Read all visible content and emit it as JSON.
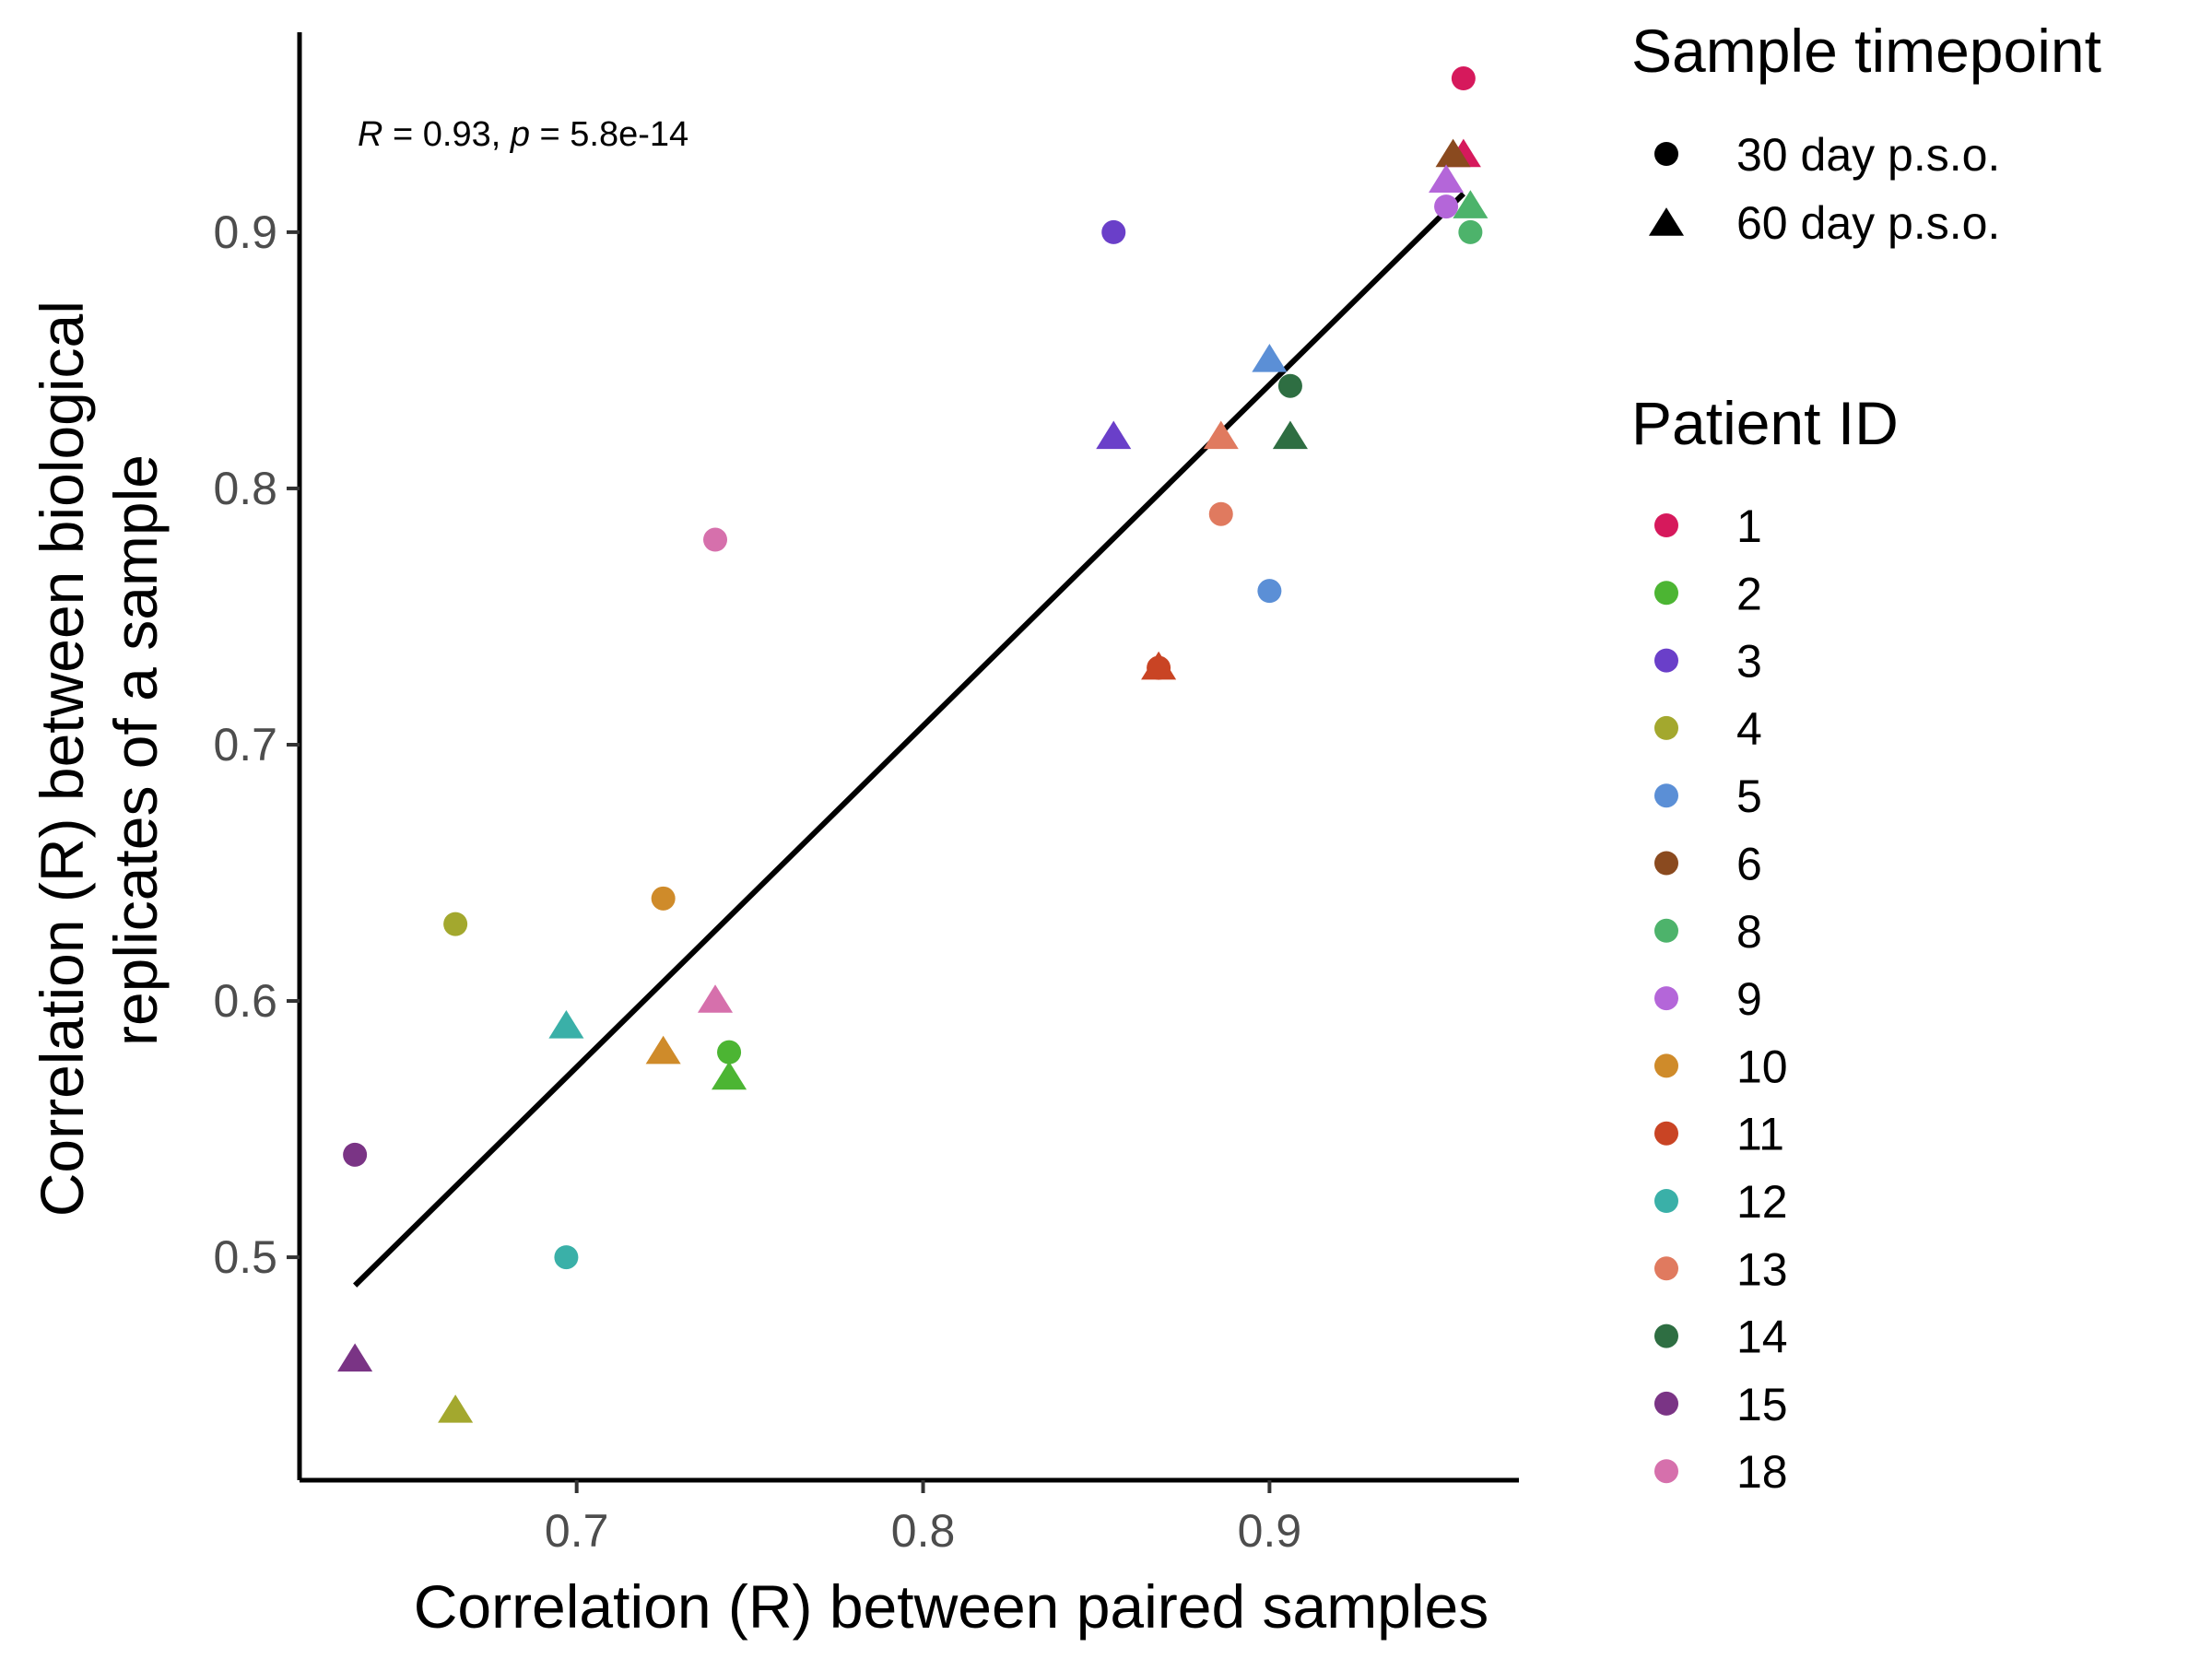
{
  "chart_data": {
    "type": "scatter",
    "title": "",
    "xlabel": "Correlation (R) between paired samples",
    "ylabel_lines": [
      "Correlation (R) between biological",
      "replicates of a sample"
    ],
    "xlim": [
      0.62,
      0.972
    ],
    "ylim": [
      0.413,
      0.978
    ],
    "x_ticks": [
      {
        "value": 0.7,
        "label": "0.7"
      },
      {
        "value": 0.8,
        "label": "0.8"
      },
      {
        "value": 0.9,
        "label": "0.9"
      }
    ],
    "y_ticks": [
      {
        "value": 0.5,
        "label": "0.5"
      },
      {
        "value": 0.6,
        "label": "0.6"
      },
      {
        "value": 0.7,
        "label": "0.7"
      },
      {
        "value": 0.8,
        "label": "0.8"
      },
      {
        "value": 0.9,
        "label": "0.9"
      }
    ],
    "grid": false,
    "annotation": {
      "r_symbol": "R",
      "r_text": " = 0.93, ",
      "p_symbol": "p",
      "p_text": " = 5.8e-14"
    },
    "regression_line": {
      "x": [
        0.636,
        0.956
      ],
      "y": [
        0.489,
        0.915
      ]
    },
    "legend_shape": {
      "title": "Sample timepoint",
      "entries": [
        {
          "label": "30 day p.s.o.",
          "shape": "circle"
        },
        {
          "label": "60 day p.s.o.",
          "shape": "triangle"
        }
      ]
    },
    "legend_color": {
      "title": "Patient ID",
      "entries": [
        {
          "label": "1",
          "color": "#d6195c"
        },
        {
          "label": "2",
          "color": "#4cb533"
        },
        {
          "label": "3",
          "color": "#6a3fc9"
        },
        {
          "label": "4",
          "color": "#a3a82e"
        },
        {
          "label": "5",
          "color": "#5b8fd6"
        },
        {
          "label": "6",
          "color": "#8a4a1f"
        },
        {
          "label": "8",
          "color": "#4db36b"
        },
        {
          "label": "9",
          "color": "#b466d9"
        },
        {
          "label": "10",
          "color": "#cf8b2a"
        },
        {
          "label": "11",
          "color": "#c94424"
        },
        {
          "label": "12",
          "color": "#3ab0a8"
        },
        {
          "label": "13",
          "color": "#e07a5f"
        },
        {
          "label": "14",
          "color": "#2e6e42"
        },
        {
          "label": "15",
          "color": "#7a3485"
        },
        {
          "label": "18",
          "color": "#d670ac"
        }
      ]
    },
    "points": [
      {
        "patient": "1",
        "shape": "circle",
        "x": 0.956,
        "y": 0.96
      },
      {
        "patient": "1",
        "shape": "triangle",
        "x": 0.956,
        "y": 0.93
      },
      {
        "patient": "2",
        "shape": "circle",
        "x": 0.744,
        "y": 0.58
      },
      {
        "patient": "2",
        "shape": "triangle",
        "x": 0.744,
        "y": 0.57
      },
      {
        "patient": "3",
        "shape": "circle",
        "x": 0.855,
        "y": 0.9
      },
      {
        "patient": "3",
        "shape": "triangle",
        "x": 0.855,
        "y": 0.82
      },
      {
        "patient": "4",
        "shape": "circle",
        "x": 0.665,
        "y": 0.63
      },
      {
        "patient": "4",
        "shape": "triangle",
        "x": 0.665,
        "y": 0.44
      },
      {
        "patient": "5",
        "shape": "circle",
        "x": 0.9,
        "y": 0.76
      },
      {
        "patient": "5",
        "shape": "triangle",
        "x": 0.9,
        "y": 0.85
      },
      {
        "patient": "6",
        "shape": "triangle",
        "x": 0.953,
        "y": 0.93
      },
      {
        "patient": "8",
        "shape": "circle",
        "x": 0.958,
        "y": 0.9
      },
      {
        "patient": "8",
        "shape": "triangle",
        "x": 0.958,
        "y": 0.91
      },
      {
        "patient": "9",
        "shape": "circle",
        "x": 0.951,
        "y": 0.91
      },
      {
        "patient": "9",
        "shape": "triangle",
        "x": 0.951,
        "y": 0.92
      },
      {
        "patient": "10",
        "shape": "circle",
        "x": 0.725,
        "y": 0.64
      },
      {
        "patient": "10",
        "shape": "triangle",
        "x": 0.725,
        "y": 0.58
      },
      {
        "patient": "11",
        "shape": "circle",
        "x": 0.868,
        "y": 0.73
      },
      {
        "patient": "11",
        "shape": "triangle",
        "x": 0.868,
        "y": 0.73
      },
      {
        "patient": "12",
        "shape": "circle",
        "x": 0.697,
        "y": 0.5
      },
      {
        "patient": "12",
        "shape": "triangle",
        "x": 0.697,
        "y": 0.59
      },
      {
        "patient": "13",
        "shape": "circle",
        "x": 0.886,
        "y": 0.79
      },
      {
        "patient": "13",
        "shape": "triangle",
        "x": 0.886,
        "y": 0.82
      },
      {
        "patient": "14",
        "shape": "circle",
        "x": 0.906,
        "y": 0.84
      },
      {
        "patient": "14",
        "shape": "triangle",
        "x": 0.906,
        "y": 0.82
      },
      {
        "patient": "15",
        "shape": "circle",
        "x": 0.636,
        "y": 0.54
      },
      {
        "patient": "15",
        "shape": "triangle",
        "x": 0.636,
        "y": 0.46
      },
      {
        "patient": "18",
        "shape": "circle",
        "x": 0.74,
        "y": 0.78
      },
      {
        "patient": "18",
        "shape": "triangle",
        "x": 0.74,
        "y": 0.6
      }
    ]
  }
}
